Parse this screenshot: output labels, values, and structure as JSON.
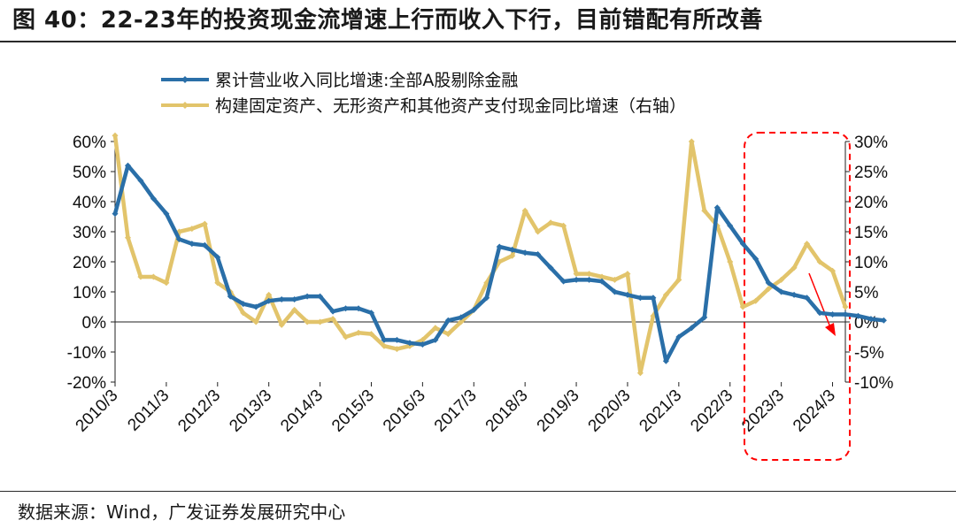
{
  "figure": {
    "title": "图 40：22-23年的投资现金流增速上行而收入下行，目前错配有所改善",
    "source": "数据来源：Wind，广发证券发展研究中心"
  },
  "chart_data": {
    "type": "line",
    "x_tick_labels": [
      "2010/3",
      "2011/3",
      "2012/3",
      "2013/3",
      "2014/3",
      "2015/3",
      "2016/3",
      "2017/3",
      "2018/3",
      "2019/3",
      "2020/3",
      "2021/3",
      "2022/3",
      "2023/3",
      "2024/3"
    ],
    "x_start": "2010/3",
    "x_frequency": "quarterly",
    "y_left": {
      "min": -20,
      "max": 60,
      "ticks": [
        "60%",
        "50%",
        "40%",
        "30%",
        "20%",
        "10%",
        "0%",
        "-10%",
        "-20%"
      ]
    },
    "y_right": {
      "min": -10,
      "max": 30,
      "ticks": [
        "30%",
        "25%",
        "20%",
        "15%",
        "10%",
        "5%",
        "0%",
        "-5%",
        "-10%"
      ]
    },
    "legend_position": "top",
    "series": [
      {
        "name": "累计营业收入同比增速:全部A股剔除金融",
        "axis": "left",
        "color": "#2a6fa8",
        "marker": "diamond",
        "values": [
          36,
          52,
          47,
          41,
          36,
          27.5,
          26,
          25.5,
          21.5,
          8.5,
          6,
          5,
          7,
          7.5,
          7.5,
          8.5,
          8.5,
          3.5,
          4.5,
          4.5,
          3,
          -6,
          -6,
          -7,
          -7.5,
          -6,
          0.5,
          1.5,
          4,
          8,
          25,
          24,
          23,
          22.5,
          18,
          13.5,
          14,
          14,
          13.5,
          10,
          9,
          8,
          8,
          -13,
          -5,
          -2,
          1.5,
          38,
          32,
          26,
          21,
          13,
          10,
          9,
          8,
          3,
          2.5,
          2.5,
          2,
          1,
          0.5
        ]
      },
      {
        "name": "构建固定资产、无形资产和其他资产支付现金同比增速（右轴）",
        "axis": "right",
        "color": "#e2c46b",
        "marker": "diamond",
        "values": [
          31,
          14,
          7.5,
          7.5,
          6.5,
          15,
          15.5,
          16.3,
          6.5,
          5,
          1.5,
          0,
          4.5,
          -0.5,
          2,
          0,
          0,
          0.5,
          -2.5,
          -1.8,
          -2,
          -4,
          -4.5,
          -4,
          -3,
          -1,
          -2,
          0,
          2,
          6.5,
          10,
          11,
          18.5,
          15,
          16.5,
          16,
          8,
          8,
          7.5,
          7,
          8,
          -8.5,
          1,
          4.5,
          7,
          30,
          18.5,
          16,
          10,
          2.5,
          3.5,
          5.5,
          7,
          9,
          13,
          10,
          8.5,
          2.5
        ]
      }
    ],
    "annotations": [
      {
        "type": "dashed-rectangle",
        "color": "#ff0000",
        "from": "2022/3",
        "to": "2024/3"
      },
      {
        "type": "arrow",
        "color": "#ff0000",
        "direction": "down"
      }
    ]
  }
}
